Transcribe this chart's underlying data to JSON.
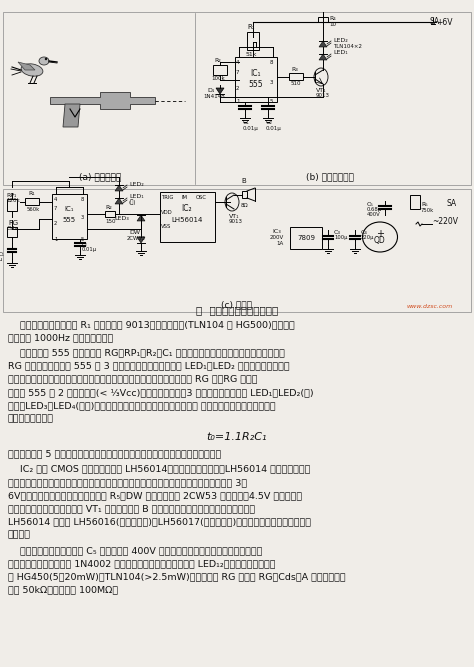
{
  "bg_color": "#f0ede8",
  "page_bg": "#f0ede8",
  "title_text": "图  电子枪打靶中的声光电路",
  "subtitle_a": "(a) 打靶示意图",
  "subtitle_b": "(b) 红外发射电路",
  "subtitle_c": "(c) 靶电路",
  "para1_indent": "    该振荡方波经限流电阵 R₁ 驱动功放管 9013，红外发射管(TLN104 或 HG500)便发出调制频率为 1000Hz 的红外调制光。",
  "para2_indent": "    靶电路中的 555 和发光电阵 RG、RP₁、R₂、C₁ 等组成光控单稳触发电路。平时无光照时，",
  "para2b": "RG 呈高阔，对基电路 555 的 3 脚呼低电平，此时发光的 LED₁、LED₂ 点亮，音响电路不工",
  "para2c": "作；当红外电子枪发射的红外光束击中嘴巴小孔内的靶电路上的发光电阵 RG 时，RG 就呈低",
  "para3a": "阔，便 555 的 2 脚为低电平(<⅓Vₘₙ)，单稳电路翻转，3 脚场呼高电位，此时 LED₁、LED₂(蓝)灯灯，",
  "para3b": "LED₃、LED₄(综色)点亮，同时，音响电路触发，发出音响。 声、光持续时间取决于单稳电路的暂稳时间，即",
  "formula": "t₀=1.1R₂C₁",
  "para4": "图示参数约为 5 秒左右。若电子枪连续击中，则靶电路会连续发出声光报出信号。",
  "para5_indent": "    IC₂ 采用 CMOS 大规模集成电路 LH56014，内存模拟鸟叫声。LH56014 采用电平、不保持触发方式，",
  "para5b": "一旦得电并触发，便进即奏出鸟的叫声，并连叫三声。该芯片的电源电压为 3～6V，为保证芯片安全，电路中设计了 R₅、DW 稳压电路，",
  "para5c": "由 2CW53 稳压出的+4.5V 为其供电。一旦得电并触发，便发声，经 VT₁ 放大驱动喜吓 B 发出鸟叫声，增加了射击效果和趣味性。",
  "para5d": "LH56014 也可用 LH56016(模拟马鳹声)、LH56017(模拟羊叫声)来代之，其供电电压、管脚排列相同。",
  "para6_indent": "    供电电源中的降压电容器 C₆ 应选用耐压 400V 以上的金属化纸介电容器；整流器应选用全桥模块，也可选用四支 1N4002 组装成全桥整流器；",
  "para6b": "发射器中的 LED₁₂可选用红外发光二极管 HG450(5～20mW)、TLN104(>2.5mW)；光敏电阵 RG 可选用 RG－Cds－A 型，其亮阔不",
  "para6c": "大于 50kΩ，暗阔大于 100MΩ。",
  "watermark": "www.dzsc.com"
}
